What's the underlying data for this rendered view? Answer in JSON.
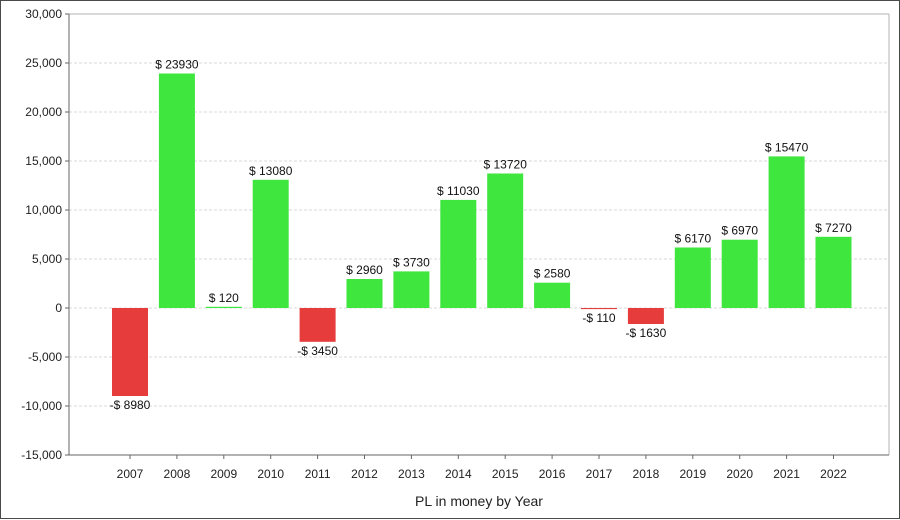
{
  "chart_data": {
    "type": "bar",
    "title": "",
    "xlabel": "PL in money by Year",
    "ylabel": "",
    "ylim": [
      -15000,
      30000
    ],
    "yticks": [
      30000,
      25000,
      20000,
      15000,
      10000,
      5000,
      0,
      -5000,
      -10000,
      -15000
    ],
    "ytick_labels": [
      "30,000",
      "25,000",
      "20,000",
      "15,000",
      "10,000",
      "5,000",
      "0",
      "-5,000",
      "-10,000",
      "-15,000"
    ],
    "grid": true,
    "categories": [
      "2007",
      "2008",
      "2009",
      "2010",
      "2011",
      "2012",
      "2013",
      "2014",
      "2015",
      "2016",
      "2017",
      "2018",
      "2019",
      "2020",
      "2021",
      "2022"
    ],
    "values": [
      -8980,
      23930,
      120,
      13080,
      -3450,
      2960,
      3730,
      11030,
      13720,
      2580,
      -110,
      -1630,
      6170,
      6970,
      15470,
      7270
    ],
    "data_labels": [
      "-$ 8980",
      "$ 23930",
      "$ 120",
      "$ 13080",
      "-$ 3450",
      "$ 2960",
      "$ 3730",
      "$ 11030",
      "$ 13720",
      "$ 2580",
      "-$ 110",
      "-$ 1630",
      "$ 6170",
      "$ 6970",
      "$ 15470",
      "$ 7270"
    ],
    "colors": {
      "positive": "#3ee63e",
      "negative": "#e63c3c",
      "grid": "#d9d9d9",
      "axis": "#666666",
      "plot_border": "#b3b3b3"
    }
  }
}
